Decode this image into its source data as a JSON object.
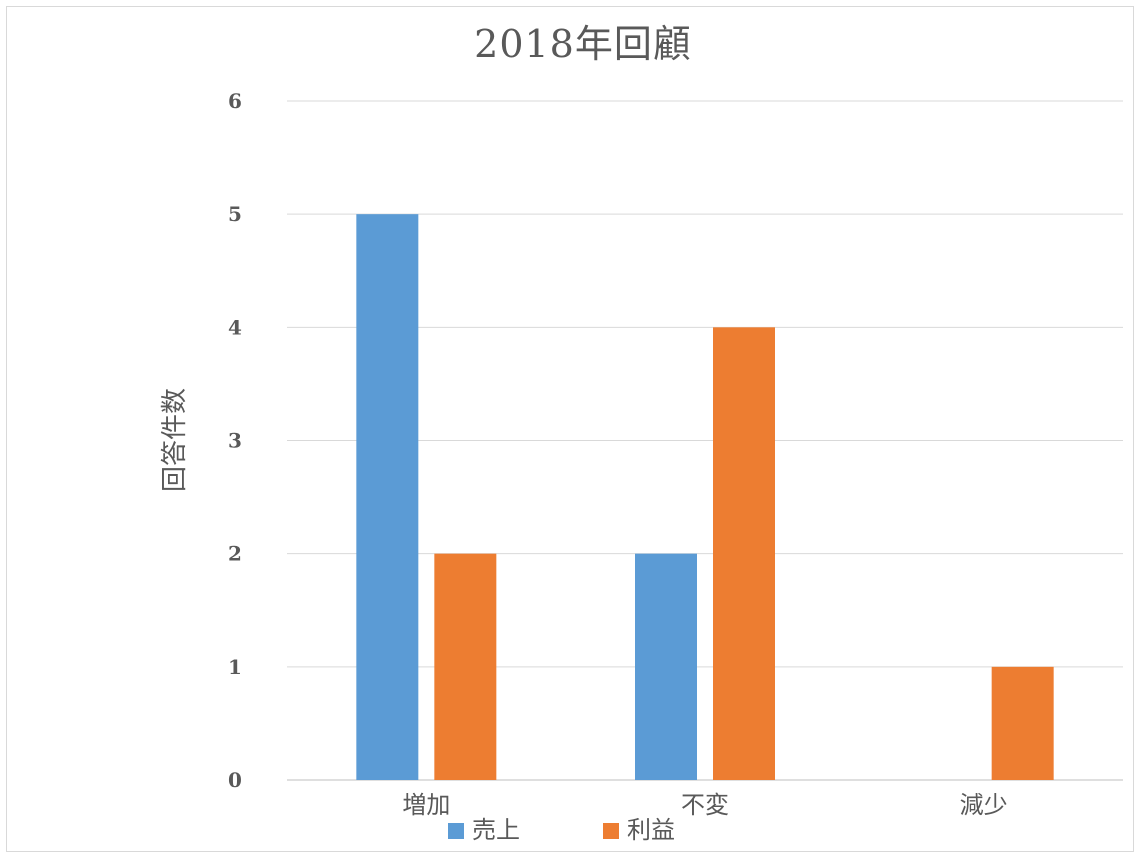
{
  "chart_data": {
    "type": "bar",
    "title": "2018年回顧",
    "xlabel": "",
    "ylabel": "回答件数",
    "categories": [
      "増加",
      "不変",
      "減少"
    ],
    "series": [
      {
        "name": "売上",
        "values": [
          5,
          2,
          0
        ],
        "color": "#5b9bd5"
      },
      {
        "name": "利益",
        "values": [
          2,
          4,
          1
        ],
        "color": "#ed7d31"
      }
    ],
    "ylim": [
      0,
      6
    ],
    "yticks": [
      "0",
      "1",
      "2",
      "3",
      "4",
      "5",
      "6"
    ],
    "grid": true,
    "legend_position": "bottom"
  }
}
